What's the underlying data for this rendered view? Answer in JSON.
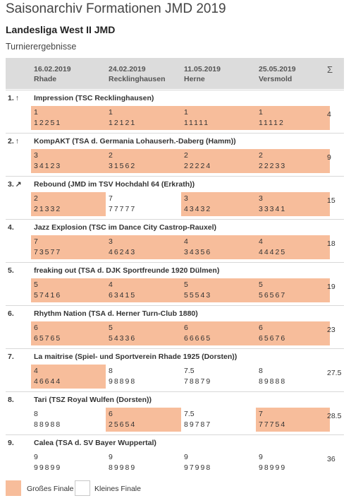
{
  "page_title": "Saisonarchiv Formationen JMD 2019",
  "league": "Landesliga West II JMD",
  "subtitle": "Turnierergebnisse",
  "header": {
    "tournaments": [
      {
        "date": "16.02.2019",
        "place": "Rhade"
      },
      {
        "date": "24.02.2019",
        "place": "Recklinghausen"
      },
      {
        "date": "11.05.2019",
        "place": "Herne"
      },
      {
        "date": "25.05.2019",
        "place": "Versmold"
      }
    ],
    "sum_symbol": "Σ"
  },
  "teams": [
    {
      "rank": "1.",
      "arrow": "↑",
      "name": "Impression (TSC Recklinghausen)",
      "sum": "4",
      "results": [
        {
          "place": "1",
          "marks": "12251",
          "final": "big"
        },
        {
          "place": "1",
          "marks": "12121",
          "final": "big"
        },
        {
          "place": "1",
          "marks": "11111",
          "final": "big"
        },
        {
          "place": "1",
          "marks": "11112",
          "final": "big"
        }
      ]
    },
    {
      "rank": "2.",
      "arrow": "↑",
      "name": "KompAKT (TSA d. Germania Lohauserh.-Daberg (Hamm))",
      "sum": "9",
      "results": [
        {
          "place": "3",
          "marks": "34123",
          "final": "big"
        },
        {
          "place": "2",
          "marks": "31562",
          "final": "big"
        },
        {
          "place": "2",
          "marks": "22224",
          "final": "big"
        },
        {
          "place": "2",
          "marks": "22233",
          "final": "big"
        }
      ]
    },
    {
      "rank": "3.",
      "arrow": "↗",
      "name": "Rebound (JMD im TSV Hochdahl 64 (Erkrath))",
      "sum": "15",
      "results": [
        {
          "place": "2",
          "marks": "21332",
          "final": "big"
        },
        {
          "place": "7",
          "marks": "77777",
          "final": "small"
        },
        {
          "place": "3",
          "marks": "43432",
          "final": "big"
        },
        {
          "place": "3",
          "marks": "33341",
          "final": "big"
        }
      ]
    },
    {
      "rank": "4.",
      "arrow": "",
      "name": "Jazz Explosion (TSC im Dance City Castrop-Rauxel)",
      "sum": "18",
      "results": [
        {
          "place": "7",
          "marks": "73577",
          "final": "big"
        },
        {
          "place": "3",
          "marks": "46243",
          "final": "big"
        },
        {
          "place": "4",
          "marks": "34356",
          "final": "big"
        },
        {
          "place": "4",
          "marks": "44425",
          "final": "big"
        }
      ]
    },
    {
      "rank": "5.",
      "arrow": "",
      "name": "freaking out (TSA d. DJK Sportfreunde 1920 Dülmen)",
      "sum": "19",
      "results": [
        {
          "place": "5",
          "marks": "57416",
          "final": "big"
        },
        {
          "place": "4",
          "marks": "63415",
          "final": "big"
        },
        {
          "place": "5",
          "marks": "55543",
          "final": "big"
        },
        {
          "place": "5",
          "marks": "56567",
          "final": "big"
        }
      ]
    },
    {
      "rank": "6.",
      "arrow": "",
      "name": "Rhythm Nation (TSA d. Herner Turn-Club 1880)",
      "sum": "23",
      "results": [
        {
          "place": "6",
          "marks": "65765",
          "final": "big"
        },
        {
          "place": "5",
          "marks": "54336",
          "final": "big"
        },
        {
          "place": "6",
          "marks": "66665",
          "final": "big"
        },
        {
          "place": "6",
          "marks": "65676",
          "final": "big"
        }
      ]
    },
    {
      "rank": "7.",
      "arrow": "",
      "name": "La maitrise (Spiel- und Sportverein Rhade 1925 (Dorsten))",
      "sum": "27.5",
      "results": [
        {
          "place": "4",
          "marks": "46644",
          "final": "big"
        },
        {
          "place": "8",
          "marks": "98898",
          "final": "small"
        },
        {
          "place": "7.5",
          "marks": "78879",
          "final": "small"
        },
        {
          "place": "8",
          "marks": "89888",
          "final": "small"
        }
      ]
    },
    {
      "rank": "8.",
      "arrow": "",
      "name": "Tari (TSZ Royal Wulfen (Dorsten))",
      "sum": "28.5",
      "results": [
        {
          "place": "8",
          "marks": "88988",
          "final": "small"
        },
        {
          "place": "6",
          "marks": "25654",
          "final": "big"
        },
        {
          "place": "7.5",
          "marks": "89787",
          "final": "small"
        },
        {
          "place": "7",
          "marks": "77754",
          "final": "big"
        }
      ]
    },
    {
      "rank": "9.",
      "arrow": "",
      "name": "Calea (TSA d. SV Bayer Wuppertal)",
      "sum": "36",
      "results": [
        {
          "place": "9",
          "marks": "99899",
          "final": "small"
        },
        {
          "place": "9",
          "marks": "89989",
          "final": "small"
        },
        {
          "place": "9",
          "marks": "97998",
          "final": "small"
        },
        {
          "place": "9",
          "marks": "98999",
          "final": "small"
        }
      ]
    }
  ],
  "legend": {
    "big_final": "Großes Finale",
    "small_final": "Kleines Finale"
  },
  "colors": {
    "big_final": "#f7bd9b",
    "header_bg": "#dcdcdc"
  }
}
